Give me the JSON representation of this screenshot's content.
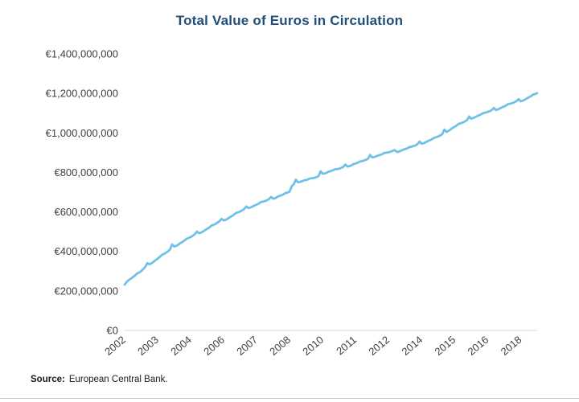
{
  "source": {
    "label": "Source:",
    "text": "European Central Bank."
  },
  "chart_data": {
    "type": "line",
    "title": "Total Value of Euros in Circulation",
    "legend": "none",
    "grid": "off",
    "colors": {
      "title": "#1F4E79",
      "line": "#6FC0E7",
      "axis_text": "#404040",
      "axis_line": "#D9D9D9",
      "rule": "#C8C8C8"
    },
    "y_axis": {
      "min": 0,
      "max": 1400000000,
      "tick_interval": 200000000,
      "tick_labels": [
        "€1,400,000,000",
        "€1,200,000,000",
        "€1,000,000,000",
        "€800,000,000",
        "€600,000,000",
        "€400,000,000",
        "€200,000,000",
        "€0"
      ]
    },
    "x_axis": {
      "range": [
        "2002-01",
        "2018-09"
      ],
      "tick_labels": [
        "2002",
        "2003",
        "2004",
        "2006",
        "2007",
        "2008",
        "2010",
        "2011",
        "2012",
        "2014",
        "2015",
        "2016",
        "2018"
      ],
      "tick_month_indices": [
        0,
        16,
        32,
        48,
        64,
        80,
        96,
        112,
        128,
        144,
        160,
        176,
        192
      ]
    },
    "series": [
      {
        "name": "Total value of euros in circulation",
        "unit": "EUR",
        "value_multiplier": 1000000,
        "start": "2002-01",
        "frequency": "monthly",
        "values_millions": [
          232,
          246,
          255,
          262,
          270,
          278,
          288,
          293,
          300,
          310,
          322,
          341,
          335,
          340,
          347,
          356,
          363,
          372,
          382,
          387,
          393,
          400,
          410,
          436,
          425,
          428,
          434,
          442,
          448,
          455,
          464,
          468,
          473,
          479,
          487,
          501,
          492,
          495,
          501,
          508,
          514,
          521,
          530,
          534,
          539,
          546,
          553,
          565,
          557,
          560,
          566,
          573,
          579,
          586,
          595,
          598,
          602,
          608,
          615,
          628,
          620,
          622,
          627,
          633,
          637,
          642,
          650,
          652,
          655,
          659,
          665,
          676,
          667,
          669,
          676,
          681,
          684,
          689,
          696,
          698,
          703,
          731,
          740,
          763,
          750,
          752,
          755,
          760,
          762,
          765,
          770,
          771,
          773,
          776,
          781,
          806,
          793,
          795,
          799,
          804,
          807,
          811,
          816,
          817,
          819,
          823,
          828,
          840,
          830,
          832,
          836,
          842,
          845,
          849,
          855,
          857,
          860,
          864,
          869,
          889,
          876,
          878,
          882,
          886,
          889,
          893,
          899,
          900,
          902,
          905,
          909,
          913,
          903,
          905,
          910,
          915,
          918,
          922,
          928,
          930,
          933,
          937,
          943,
          956,
          945,
          948,
          953,
          959,
          963,
          968,
          975,
          978,
          982,
          987,
          994,
          1017,
          1005,
          1010,
          1017,
          1025,
          1031,
          1038,
          1046,
          1049,
          1053,
          1058,
          1065,
          1083,
          1072,
          1075,
          1080,
          1086,
          1090,
          1095,
          1101,
          1103,
          1106,
          1110,
          1116,
          1126,
          1116,
          1119,
          1124,
          1130,
          1134,
          1139,
          1146,
          1148,
          1151,
          1155,
          1161,
          1171,
          1160,
          1163,
          1168,
          1175,
          1180,
          1186,
          1194,
          1197,
          1201
        ]
      }
    ]
  }
}
